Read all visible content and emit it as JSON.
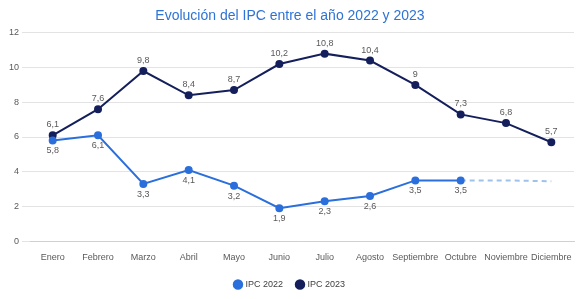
{
  "chart_data": {
    "type": "line",
    "title": "Evolución del IPC entre el año 2022 y 2023",
    "categories": [
      "Enero",
      "Febrero",
      "Marzo",
      "Abril",
      "Mayo",
      "Junio",
      "Julio",
      "Agosto",
      "Septiembre",
      "Octubre",
      "Noviembre",
      "Diciembre"
    ],
    "series": [
      {
        "name": "IPC 2022",
        "color": "#2a6fdb",
        "marker": "circle",
        "line_style": "solid",
        "values": [
          5.8,
          6.1,
          3.3,
          4.1,
          3.2,
          1.9,
          2.3,
          2.6,
          3.5,
          3.5,
          null,
          null
        ],
        "value_labels": [
          "5,8",
          "6,1",
          "3,3",
          "4,1",
          "3,2",
          "1,9",
          "2,3",
          "2,6",
          "3,5",
          "3,5",
          null,
          null
        ]
      },
      {
        "name": "IPC 2023",
        "color": "#141f5c",
        "marker": "circle",
        "line_style": "solid",
        "values": [
          6.1,
          7.6,
          9.8,
          8.4,
          8.7,
          10.2,
          10.8,
          10.4,
          9,
          7.3,
          6.8,
          5.7
        ],
        "value_labels": [
          "6,1",
          "7,6",
          "9,8",
          "8,4",
          "8,7",
          "10,2",
          "10,8",
          "10,4",
          "9",
          "7,3",
          "6,8",
          "5,7"
        ]
      },
      {
        "color": "#9fc2ea",
        "marker": "none",
        "line_style": "dashed",
        "values": [
          null,
          null,
          null,
          null,
          null,
          null,
          null,
          null,
          null,
          3.5,
          3.5,
          3.45
        ]
      }
    ],
    "ylim": [
      0,
      12
    ],
    "yticks": [
      0,
      2,
      4,
      6,
      8,
      10,
      12
    ],
    "grid": true,
    "legend": "bottom",
    "data_labels": true
  }
}
